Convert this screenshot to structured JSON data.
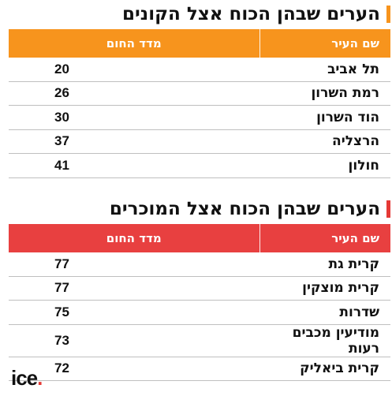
{
  "buyers": {
    "title": "הערים שבהן הכוח אצל הקונים",
    "accent": "#f7941d",
    "header_color": "#f7941d",
    "col_city": "שם העיר",
    "col_index": "מדד החום",
    "rows": [
      {
        "city": "תל אביב",
        "value": "20"
      },
      {
        "city": "רמת השרון",
        "value": "26"
      },
      {
        "city": "הוד השרון",
        "value": "30"
      },
      {
        "city": "הרצליה",
        "value": "37"
      },
      {
        "city": "חולון",
        "value": "41"
      }
    ]
  },
  "sellers": {
    "title": "הערים שבהן הכוח אצל המוכרים",
    "accent": "#e53935",
    "header_color": "#e84040",
    "col_city": "שם העיר",
    "col_index": "מדד החום",
    "rows": [
      {
        "city": "קרית גת",
        "value": "77"
      },
      {
        "city": "קרית מוצקין",
        "value": "77"
      },
      {
        "city": "שדרות",
        "value": "75"
      },
      {
        "city": "מודיעין מכבים רעות",
        "value": "73"
      },
      {
        "city": "קרית ביאליק",
        "value": "72"
      }
    ]
  },
  "logo": {
    "text": "ice",
    "dot": "."
  }
}
